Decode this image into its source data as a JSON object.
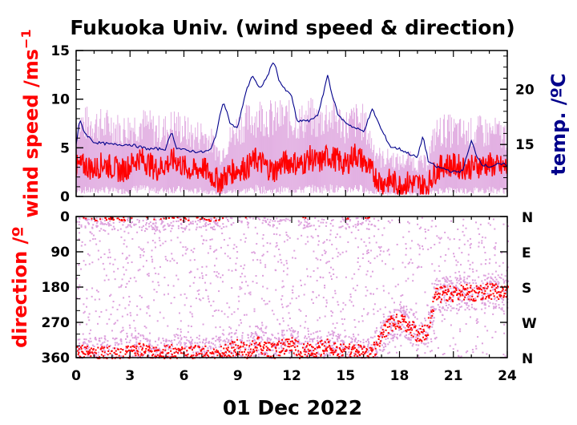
{
  "chart_data": [
    {
      "type": "line",
      "title": "Fukuoka Univ. (wind speed & direction)",
      "ylabel": "wind speed /ms",
      "ylabel_sup": "−1",
      "y2label": "temp. /ºC",
      "ylim": [
        0,
        15
      ],
      "yticks": [
        "0",
        "5",
        "10",
        "15"
      ],
      "y2lim": [
        10.3,
        23.5
      ],
      "y2ticks": [
        "15",
        "20"
      ],
      "xlim": [
        0,
        24
      ],
      "colors": {
        "gust": "#dda0dd",
        "speed": "#ff0000",
        "temp": "#00008b"
      },
      "series": [
        {
          "role": "mean wind speed",
          "x": [
            0,
            0.5,
            1,
            1.5,
            2,
            2.5,
            3,
            3.5,
            4,
            4.5,
            5,
            5.5,
            6,
            6.5,
            7,
            7.5,
            8,
            8.5,
            9,
            9.5,
            10,
            10.5,
            11,
            11.5,
            12,
            12.5,
            13,
            13.5,
            14,
            14.5,
            15,
            15.5,
            16,
            16.5,
            17,
            17.5,
            18,
            18.5,
            19,
            19.5,
            20,
            20.5,
            21,
            21.5,
            22,
            22.5,
            23,
            23.5,
            24
          ],
          "values": [
            3,
            3.2,
            2.8,
            3.4,
            3,
            2.6,
            3.2,
            4,
            3.4,
            2.8,
            3.3,
            3.8,
            3,
            2.6,
            3,
            2.2,
            1.5,
            2.4,
            2.8,
            3,
            3.8,
            3.2,
            2.6,
            3.4,
            3.6,
            3.2,
            4,
            3.4,
            4.2,
            3.8,
            3.2,
            4.4,
            3.6,
            2.4,
            1.4,
            1.6,
            1.2,
            1.4,
            1.3,
            1,
            2.6,
            3.3,
            3.2,
            3,
            3,
            3.2,
            3.3,
            3,
            3
          ]
        },
        {
          "role": "gust",
          "x": [
            0,
            0.5,
            1,
            1.5,
            2,
            2.5,
            3,
            3.5,
            4,
            4.5,
            5,
            5.5,
            6,
            6.5,
            7,
            7.5,
            8,
            8.5,
            9,
            9.5,
            10,
            10.5,
            11,
            11.5,
            12,
            12.5,
            13,
            13.5,
            14,
            14.5,
            15,
            15.5,
            16,
            16.5,
            17,
            17.5,
            18,
            18.5,
            19,
            19.5,
            20,
            20.5,
            21,
            21.5,
            22,
            22.5,
            23,
            23.5,
            24
          ],
          "values": [
            8,
            7.8,
            8,
            7.5,
            7.8,
            7,
            7.5,
            7.8,
            7.6,
            7,
            7.2,
            7.8,
            7.2,
            6.5,
            6.8,
            6,
            4.5,
            6,
            7.5,
            8,
            8.6,
            8.8,
            8.2,
            8.5,
            8.2,
            8,
            8.6,
            8,
            8.8,
            8.4,
            7.6,
            8.2,
            8,
            5.5,
            4,
            4.2,
            3.6,
            4,
            3.5,
            3.6,
            6.8,
            7.2,
            7,
            6.8,
            6.8,
            7,
            6.9,
            6.8,
            6.6
          ]
        },
        {
          "role": "temperature",
          "x": [
            0,
            0.2,
            0.5,
            1,
            2,
            3,
            4,
            5,
            5.3,
            5.6,
            6,
            7,
            7.5,
            7.8,
            8.2,
            8.6,
            9,
            9.4,
            9.8,
            10.2,
            10.6,
            11,
            11.3,
            11.6,
            12,
            12.3,
            12.6,
            13,
            13.5,
            14,
            14.3,
            14.6,
            15,
            15.5,
            16,
            16.5,
            17,
            17.5,
            18,
            18.5,
            19,
            19.3,
            19.6,
            20,
            20.5,
            21,
            21.5,
            22,
            22.3,
            22.6,
            23,
            23.5,
            24
          ],
          "values": [
            15,
            17.2,
            16,
            15.2,
            15,
            15,
            14.6,
            14.6,
            16.2,
            14.7,
            14.5,
            14.3,
            14.5,
            16,
            19,
            16.8,
            16.5,
            19.5,
            21.3,
            20,
            21,
            22.6,
            20.8,
            20,
            19.4,
            17,
            17.2,
            17.1,
            17.8,
            21.3,
            19.2,
            17.6,
            17,
            16.5,
            16.2,
            18.2,
            16.3,
            14.8,
            14.6,
            14.2,
            13.8,
            15.8,
            13.5,
            13,
            12.8,
            12.5,
            12.6,
            15.3,
            14,
            13.2,
            13,
            13.2,
            13.2
          ]
        }
      ]
    },
    {
      "type": "scatter",
      "ylabel": "direction /º",
      "ylim": [
        0,
        360
      ],
      "yticks": [
        "0",
        "90",
        "180",
        "270",
        "360"
      ],
      "y2ticks": [
        "N",
        "E",
        "S",
        "W",
        "N"
      ],
      "xlim": [
        0,
        24
      ],
      "xticks": [
        "0",
        "3",
        "6",
        "9",
        "12",
        "15",
        "18",
        "21",
        "24"
      ],
      "xlabel": "01 Dec 2022",
      "colors": {
        "gust_dir": "#dda0dd",
        "mean_dir": "#ff0000"
      },
      "series": [
        {
          "role": "mean direction",
          "x": [
            0,
            0.5,
            1,
            1.5,
            2,
            2.5,
            3,
            3.5,
            4,
            4.5,
            5,
            5.5,
            6,
            6.5,
            7,
            7.5,
            8,
            8.5,
            9,
            9.5,
            10,
            10.5,
            11,
            11.5,
            12,
            12.5,
            13,
            13.5,
            14,
            14.5,
            15,
            15.5,
            16,
            16.5,
            17,
            17.5,
            18,
            18.5,
            19,
            19.5,
            20,
            20.5,
            21,
            21.5,
            22,
            22.5,
            23,
            23.5,
            24
          ],
          "values": [
            350,
            345,
            352,
            348,
            350,
            352,
            345,
            340,
            348,
            352,
            346,
            342,
            350,
            348,
            345,
            352,
            350,
            340,
            330,
            345,
            320,
            335,
            340,
            330,
            325,
            345,
            340,
            335,
            330,
            340,
            345,
            340,
            350,
            342,
            300,
            270,
            265,
            275,
            300,
            290,
            200,
            195,
            195,
            190,
            195,
            190,
            188,
            192,
            190
          ]
        }
      ]
    }
  ]
}
